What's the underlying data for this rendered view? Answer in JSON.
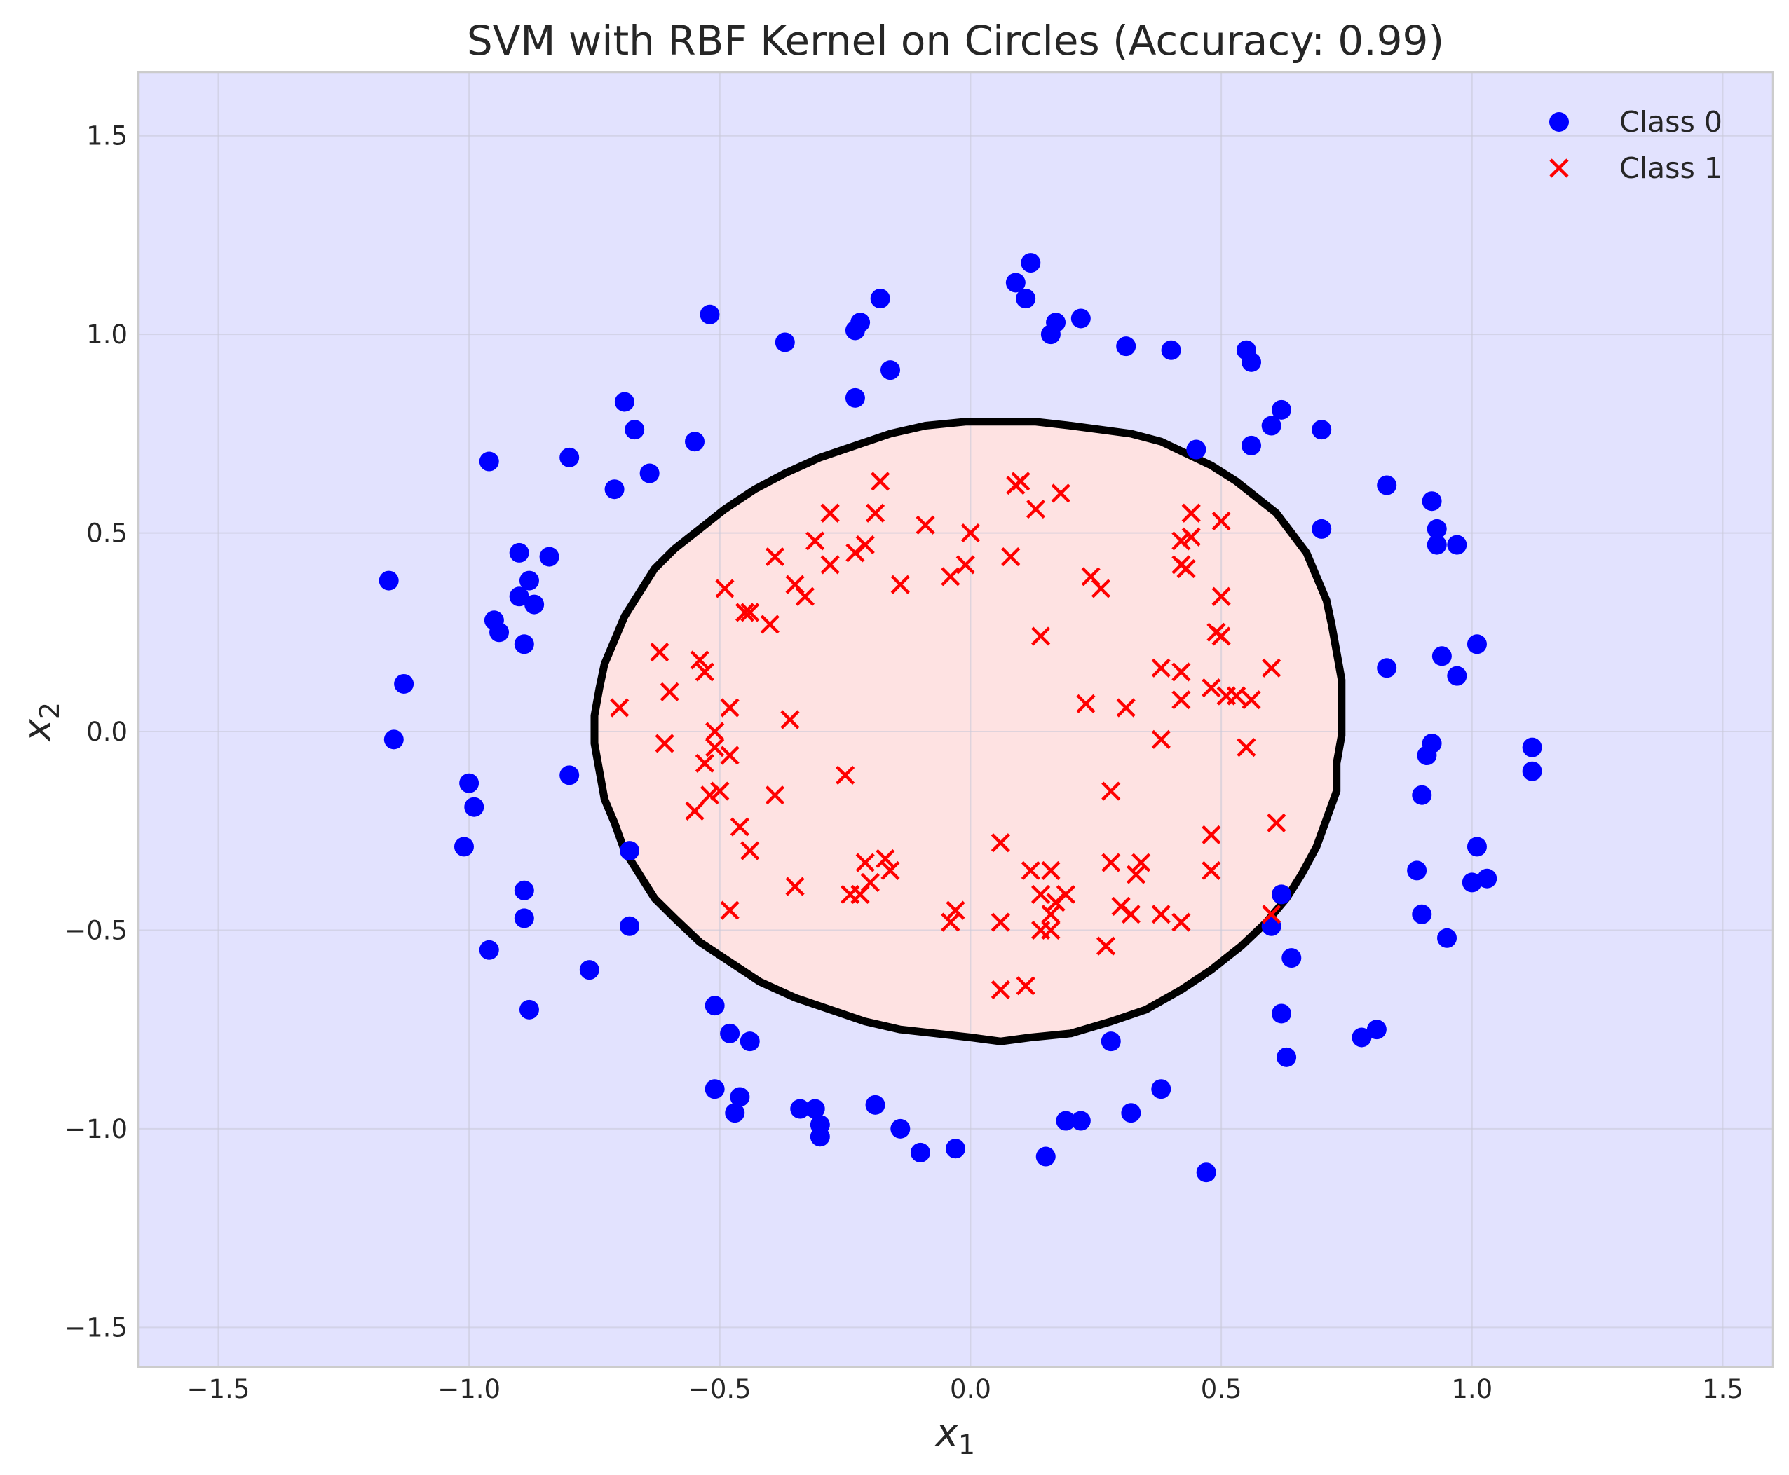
{
  "chart_data": {
    "type": "scatter",
    "title": "SVM with RBF Kernel on Circles (Accuracy: 0.99)",
    "xlabel": "x",
    "xlabel_sub": "1",
    "ylabel": "x",
    "ylabel_sub": "2",
    "xlim": [
      -1.66,
      1.6
    ],
    "ylim": [
      -1.6,
      1.66
    ],
    "xticks": [
      -1.5,
      -1.0,
      -0.5,
      0.0,
      0.5,
      1.0,
      1.5
    ],
    "yticks": [
      -1.5,
      -1.0,
      -0.5,
      0.0,
      0.5,
      1.0,
      1.5
    ],
    "xtick_labels": [
      "−1.5",
      "−1.0",
      "−0.5",
      "0.0",
      "0.5",
      "1.0",
      "1.5"
    ],
    "ytick_labels": [
      "−1.5",
      "−1.0",
      "−0.5",
      "0.0",
      "0.5",
      "1.0",
      "1.5"
    ],
    "grid": true,
    "legend_position": "top-right",
    "colors": {
      "background_region": "#e2e2fe",
      "inner_region": "#fee2e2",
      "class0": "#0000ff",
      "class1": "#ff0000",
      "boundary": "#000000"
    },
    "series": [
      {
        "name": "Class 0",
        "marker": "circle",
        "points": [
          [
            0.12,
            1.18
          ],
          [
            0.09,
            1.13
          ],
          [
            0.11,
            1.09
          ],
          [
            -0.18,
            1.09
          ],
          [
            -0.22,
            1.03
          ],
          [
            -0.23,
            1.01
          ],
          [
            -0.52,
            1.05
          ],
          [
            -0.37,
            0.98
          ],
          [
            0.17,
            1.03
          ],
          [
            0.16,
            1.0
          ],
          [
            0.22,
            1.04
          ],
          [
            0.31,
            0.97
          ],
          [
            0.4,
            0.96
          ],
          [
            0.55,
            0.96
          ],
          [
            0.56,
            0.93
          ],
          [
            -0.16,
            0.91
          ],
          [
            -0.23,
            0.84
          ],
          [
            -0.69,
            0.83
          ],
          [
            -0.67,
            0.76
          ],
          [
            -0.55,
            0.73
          ],
          [
            -0.8,
            0.69
          ],
          [
            -0.96,
            0.68
          ],
          [
            -0.71,
            0.61
          ],
          [
            -0.64,
            0.65
          ],
          [
            0.62,
            0.81
          ],
          [
            0.6,
            0.77
          ],
          [
            0.7,
            0.76
          ],
          [
            0.45,
            0.71
          ],
          [
            0.56,
            0.72
          ],
          [
            0.83,
            0.62
          ],
          [
            0.92,
            0.58
          ],
          [
            0.93,
            0.51
          ],
          [
            0.93,
            0.47
          ],
          [
            0.97,
            0.47
          ],
          [
            0.7,
            0.51
          ],
          [
            -0.9,
            0.45
          ],
          [
            -0.84,
            0.44
          ],
          [
            -0.88,
            0.38
          ],
          [
            -0.9,
            0.34
          ],
          [
            -0.87,
            0.32
          ],
          [
            -0.95,
            0.28
          ],
          [
            -0.94,
            0.25
          ],
          [
            -0.89,
            0.22
          ],
          [
            -1.16,
            0.38
          ],
          [
            -1.13,
            0.12
          ],
          [
            -1.15,
            -0.02
          ],
          [
            -0.8,
            -0.11
          ],
          [
            -1.0,
            -0.13
          ],
          [
            -0.99,
            -0.19
          ],
          [
            -1.01,
            -0.29
          ],
          [
            -0.89,
            -0.4
          ],
          [
            -0.89,
            -0.47
          ],
          [
            -0.96,
            -0.55
          ],
          [
            -0.68,
            -0.3
          ],
          [
            -0.68,
            -0.49
          ],
          [
            -0.76,
            -0.6
          ],
          [
            -0.88,
            -0.7
          ],
          [
            0.83,
            0.16
          ],
          [
            0.94,
            0.19
          ],
          [
            0.97,
            0.14
          ],
          [
            1.01,
            0.22
          ],
          [
            0.92,
            -0.03
          ],
          [
            0.91,
            -0.06
          ],
          [
            0.9,
            -0.16
          ],
          [
            1.12,
            -0.04
          ],
          [
            1.12,
            -0.1
          ],
          [
            1.01,
            -0.29
          ],
          [
            0.89,
            -0.35
          ],
          [
            1.0,
            -0.38
          ],
          [
            1.03,
            -0.37
          ],
          [
            0.9,
            -0.46
          ],
          [
            0.95,
            -0.52
          ],
          [
            0.62,
            -0.41
          ],
          [
            0.6,
            -0.49
          ],
          [
            0.64,
            -0.57
          ],
          [
            0.62,
            -0.71
          ],
          [
            0.63,
            -0.82
          ],
          [
            0.78,
            -0.77
          ],
          [
            0.81,
            -0.75
          ],
          [
            0.28,
            -0.78
          ],
          [
            0.38,
            -0.9
          ],
          [
            0.32,
            -0.96
          ],
          [
            0.19,
            -0.98
          ],
          [
            0.22,
            -0.98
          ],
          [
            0.15,
            -1.07
          ],
          [
            0.47,
            -1.11
          ],
          [
            -0.51,
            -0.69
          ],
          [
            -0.48,
            -0.76
          ],
          [
            -0.44,
            -0.78
          ],
          [
            -0.51,
            -0.9
          ],
          [
            -0.46,
            -0.92
          ],
          [
            -0.47,
            -0.96
          ],
          [
            -0.34,
            -0.95
          ],
          [
            -0.31,
            -0.95
          ],
          [
            -0.3,
            -0.99
          ],
          [
            -0.3,
            -1.02
          ],
          [
            -0.19,
            -0.94
          ],
          [
            -0.14,
            -1.0
          ],
          [
            -0.1,
            -1.06
          ],
          [
            -0.03,
            -1.05
          ]
        ]
      },
      {
        "name": "Class 1",
        "marker": "x",
        "points": [
          [
            -0.18,
            0.63
          ],
          [
            0.1,
            0.63
          ],
          [
            0.09,
            0.62
          ],
          [
            0.18,
            0.6
          ],
          [
            0.13,
            0.56
          ],
          [
            -0.28,
            0.55
          ],
          [
            -0.19,
            0.55
          ],
          [
            -0.09,
            0.52
          ],
          [
            0.0,
            0.5
          ],
          [
            -0.31,
            0.48
          ],
          [
            -0.21,
            0.47
          ],
          [
            -0.23,
            0.45
          ],
          [
            -0.39,
            0.44
          ],
          [
            0.08,
            0.44
          ],
          [
            -0.28,
            0.42
          ],
          [
            -0.01,
            0.42
          ],
          [
            -0.04,
            0.39
          ],
          [
            0.24,
            0.39
          ],
          [
            0.26,
            0.36
          ],
          [
            -0.35,
            0.37
          ],
          [
            -0.14,
            0.37
          ],
          [
            -0.49,
            0.36
          ],
          [
            -0.33,
            0.34
          ],
          [
            -0.45,
            0.3
          ],
          [
            -0.44,
            0.3
          ],
          [
            -0.4,
            0.27
          ],
          [
            0.14,
            0.24
          ],
          [
            0.44,
            0.55
          ],
          [
            0.5,
            0.53
          ],
          [
            0.42,
            0.48
          ],
          [
            0.44,
            0.49
          ],
          [
            0.42,
            0.42
          ],
          [
            0.43,
            0.41
          ],
          [
            0.5,
            0.34
          ],
          [
            0.49,
            0.25
          ],
          [
            0.5,
            0.24
          ],
          [
            0.38,
            0.16
          ],
          [
            0.42,
            0.15
          ],
          [
            0.6,
            0.16
          ],
          [
            0.48,
            0.11
          ],
          [
            0.51,
            0.09
          ],
          [
            0.53,
            0.09
          ],
          [
            0.56,
            0.08
          ],
          [
            0.42,
            0.08
          ],
          [
            0.23,
            0.07
          ],
          [
            0.31,
            0.06
          ],
          [
            -0.7,
            0.06
          ],
          [
            -0.62,
            0.2
          ],
          [
            -0.54,
            0.18
          ],
          [
            -0.53,
            0.15
          ],
          [
            -0.6,
            0.1
          ],
          [
            -0.48,
            0.06
          ],
          [
            -0.36,
            0.03
          ],
          [
            -0.51,
            0.0
          ],
          [
            -0.61,
            -0.03
          ],
          [
            -0.51,
            -0.04
          ],
          [
            -0.48,
            -0.06
          ],
          [
            -0.53,
            -0.08
          ],
          [
            -0.25,
            -0.11
          ],
          [
            -0.5,
            -0.15
          ],
          [
            -0.52,
            -0.16
          ],
          [
            -0.39,
            -0.16
          ],
          [
            -0.55,
            -0.2
          ],
          [
            -0.46,
            -0.24
          ],
          [
            -0.44,
            -0.3
          ],
          [
            0.38,
            -0.02
          ],
          [
            0.55,
            -0.04
          ],
          [
            0.28,
            -0.15
          ],
          [
            0.61,
            -0.23
          ],
          [
            0.48,
            -0.26
          ],
          [
            0.06,
            -0.28
          ],
          [
            -0.35,
            -0.39
          ],
          [
            -0.21,
            -0.33
          ],
          [
            -0.17,
            -0.32
          ],
          [
            -0.16,
            -0.35
          ],
          [
            -0.2,
            -0.38
          ],
          [
            -0.22,
            -0.41
          ],
          [
            -0.24,
            -0.41
          ],
          [
            -0.48,
            -0.45
          ],
          [
            0.12,
            -0.35
          ],
          [
            0.16,
            -0.35
          ],
          [
            0.28,
            -0.33
          ],
          [
            0.34,
            -0.33
          ],
          [
            0.33,
            -0.36
          ],
          [
            0.48,
            -0.35
          ],
          [
            0.14,
            -0.41
          ],
          [
            0.17,
            -0.43
          ],
          [
            0.19,
            -0.41
          ],
          [
            0.3,
            -0.44
          ],
          [
            0.32,
            -0.46
          ],
          [
            0.38,
            -0.46
          ],
          [
            0.42,
            -0.48
          ],
          [
            0.16,
            -0.46
          ],
          [
            0.16,
            -0.5
          ],
          [
            -0.04,
            -0.48
          ],
          [
            -0.03,
            -0.45
          ],
          [
            0.06,
            -0.48
          ],
          [
            0.14,
            -0.5
          ],
          [
            0.27,
            -0.54
          ],
          [
            0.6,
            -0.46
          ],
          [
            0.06,
            -0.65
          ],
          [
            0.11,
            -0.64
          ]
        ]
      }
    ],
    "decision_boundary": {
      "label": "",
      "polygon": [
        [
          -0.01,
          0.78
        ],
        [
          0.06,
          0.78
        ],
        [
          0.13,
          0.78
        ],
        [
          0.2,
          0.77
        ],
        [
          0.26,
          0.76
        ],
        [
          0.32,
          0.75
        ],
        [
          0.38,
          0.73
        ],
        [
          0.43,
          0.7
        ],
        [
          0.48,
          0.67
        ],
        [
          0.53,
          0.63
        ],
        [
          0.57,
          0.59
        ],
        [
          0.61,
          0.55
        ],
        [
          0.64,
          0.5
        ],
        [
          0.67,
          0.45
        ],
        [
          0.69,
          0.39
        ],
        [
          0.71,
          0.33
        ],
        [
          0.72,
          0.27
        ],
        [
          0.73,
          0.2
        ],
        [
          0.74,
          0.13
        ],
        [
          0.74,
          0.06
        ],
        [
          0.74,
          -0.01
        ],
        [
          0.73,
          -0.08
        ],
        [
          0.73,
          -0.15
        ],
        [
          0.71,
          -0.22
        ],
        [
          0.69,
          -0.29
        ],
        [
          0.66,
          -0.36
        ],
        [
          0.63,
          -0.42
        ],
        [
          0.59,
          -0.48
        ],
        [
          0.54,
          -0.54
        ],
        [
          0.48,
          -0.6
        ],
        [
          0.42,
          -0.65
        ],
        [
          0.35,
          -0.7
        ],
        [
          0.28,
          -0.73
        ],
        [
          0.2,
          -0.76
        ],
        [
          0.12,
          -0.77
        ],
        [
          0.06,
          -0.78
        ],
        [
          0.0,
          -0.77
        ],
        [
          -0.07,
          -0.76
        ],
        [
          -0.14,
          -0.75
        ],
        [
          -0.21,
          -0.73
        ],
        [
          -0.28,
          -0.7
        ],
        [
          -0.35,
          -0.67
        ],
        [
          -0.42,
          -0.63
        ],
        [
          -0.48,
          -0.58
        ],
        [
          -0.54,
          -0.53
        ],
        [
          -0.59,
          -0.47
        ],
        [
          -0.63,
          -0.42
        ],
        [
          -0.66,
          -0.36
        ],
        [
          -0.69,
          -0.3
        ],
        [
          -0.71,
          -0.23
        ],
        [
          -0.73,
          -0.17
        ],
        [
          -0.74,
          -0.1
        ],
        [
          -0.75,
          -0.03
        ],
        [
          -0.75,
          0.04
        ],
        [
          -0.74,
          0.11
        ],
        [
          -0.73,
          0.17
        ],
        [
          -0.71,
          0.23
        ],
        [
          -0.69,
          0.29
        ],
        [
          -0.66,
          0.35
        ],
        [
          -0.63,
          0.41
        ],
        [
          -0.59,
          0.46
        ],
        [
          -0.54,
          0.51
        ],
        [
          -0.49,
          0.56
        ],
        [
          -0.43,
          0.61
        ],
        [
          -0.37,
          0.65
        ],
        [
          -0.3,
          0.69
        ],
        [
          -0.23,
          0.72
        ],
        [
          -0.16,
          0.75
        ],
        [
          -0.09,
          0.77
        ]
      ]
    }
  }
}
